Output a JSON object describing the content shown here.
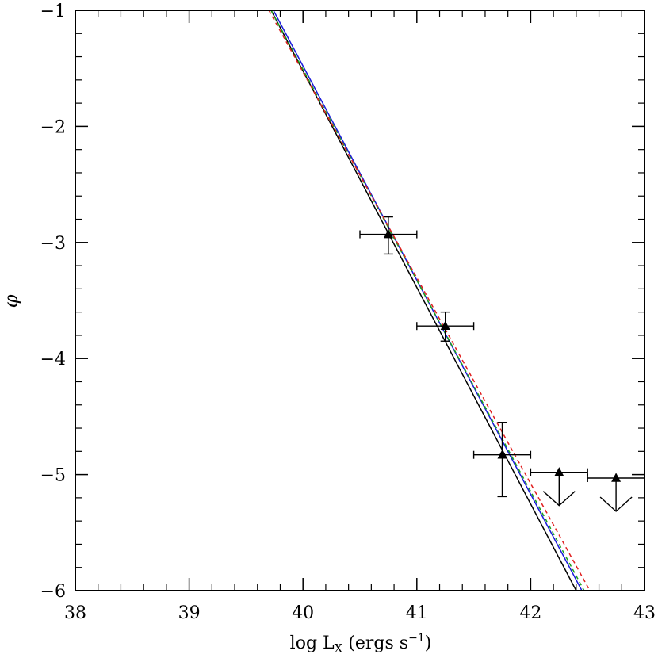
{
  "chart_data": {
    "type": "scatter",
    "title": "",
    "xlabel": {
      "main": "log L",
      "sub": "X",
      "units_pre": " (ergs s",
      "sup": "−1",
      "units_post": ")"
    },
    "ylabel": "φ",
    "xlim": [
      38,
      43
    ],
    "ylim": [
      -6,
      -1
    ],
    "xticks": [
      38,
      39,
      40,
      41,
      42,
      43
    ],
    "xtick_labels": [
      "38",
      "39",
      "40",
      "41",
      "42",
      "43"
    ],
    "yticks": [
      -1,
      -2,
      -3,
      -4,
      -5,
      -6
    ],
    "ytick_labels": [
      "−1",
      "−2",
      "−3",
      "−4",
      "−5",
      "−6"
    ],
    "minor_x_step": 0.2,
    "minor_y_step": 0.2,
    "grid": false,
    "points": [
      {
        "x": 40.75,
        "y": -2.93,
        "xerr": [
          0.25,
          0.25
        ],
        "yerr": [
          0.17,
          0.15
        ],
        "upper_limit": false
      },
      {
        "x": 41.25,
        "y": -3.72,
        "xerr": [
          0.25,
          0.25
        ],
        "yerr": [
          0.13,
          0.12
        ],
        "upper_limit": false
      },
      {
        "x": 41.75,
        "y": -4.83,
        "xerr": [
          0.25,
          0.25
        ],
        "yerr": [
          0.36,
          0.28
        ],
        "upper_limit": false
      },
      {
        "x": 42.25,
        "y": -4.98,
        "xerr": [
          0.25,
          0.25
        ],
        "yerr": [
          0,
          0
        ],
        "upper_limit": true
      },
      {
        "x": 42.75,
        "y": -5.03,
        "xerr": [
          0.25,
          0.25
        ],
        "yerr": [
          0,
          0
        ],
        "upper_limit": true
      }
    ],
    "fits": [
      {
        "style": "solid",
        "color": "#000000",
        "x": [
          39.72,
          42.4
        ],
        "y": [
          -1.0,
          -6.0
        ]
      },
      {
        "style": "solid",
        "color": "#1a1adb",
        "x": [
          39.74,
          42.45
        ],
        "y": [
          -1.0,
          -6.0
        ]
      },
      {
        "style": "dashed",
        "color": "#1aa01a",
        "x": [
          39.72,
          42.47
        ],
        "y": [
          -1.0,
          -6.0
        ]
      },
      {
        "style": "dashed",
        "color": "#e02020",
        "x": [
          39.7,
          42.52
        ],
        "y": [
          -1.0,
          -6.0
        ]
      }
    ]
  }
}
